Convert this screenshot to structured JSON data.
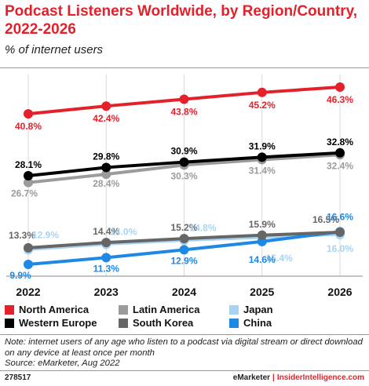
{
  "title": "Podcast Listeners Worldwide, by Region/Country, 2022-2026",
  "subtitle": "% of internet users",
  "note": "Note: internet users of any age who listen to a podcast via digital stream or direct download on any device at least once per month",
  "source": "Source: eMarketer, Aug 2022",
  "footer": {
    "id": "278517",
    "brand": "eMarketer",
    "separator": "|",
    "site": "InsiderIntelligence.com"
  },
  "chart_data": {
    "type": "line",
    "x": [
      "2022",
      "2023",
      "2024",
      "2025",
      "2026"
    ],
    "ylim": [
      0,
      50
    ],
    "grid": true,
    "legend_position": "bottom",
    "series": [
      {
        "name": "North America",
        "color": "#e4202a",
        "values": [
          40.8,
          42.4,
          43.8,
          45.2,
          46.3
        ],
        "labels": [
          "40.8%",
          "42.4%",
          "43.8%",
          "45.2%",
          "46.3%"
        ]
      },
      {
        "name": "Western Europe",
        "color": "#000000",
        "values": [
          28.1,
          29.8,
          30.9,
          31.9,
          32.8
        ],
        "labels": [
          "28.1%",
          "29.8%",
          "30.9%",
          "31.9%",
          "32.8%"
        ]
      },
      {
        "name": "Latin America",
        "color": "#9b9b9b",
        "values": [
          26.7,
          28.4,
          30.3,
          31.4,
          32.4
        ],
        "labels": [
          "26.7%",
          "28.4%",
          "30.3%",
          "31.4%",
          "32.4%"
        ]
      },
      {
        "name": "South Korea",
        "color": "#666666",
        "values": [
          13.3,
          14.4,
          15.2,
          15.9,
          16.5
        ],
        "labels": [
          "13.3%",
          "14.4%",
          "15.2%",
          "15.9%",
          "16.5%"
        ]
      },
      {
        "name": "Japan",
        "color": "#a8d4f2",
        "values": [
          12.9,
          14.0,
          14.8,
          15.4,
          16.0
        ],
        "labels": [
          "12.9%",
          "14.0%",
          "14.8%",
          "15.4%",
          "16.0%"
        ]
      },
      {
        "name": "China",
        "color": "#1e88e5",
        "values": [
          9.9,
          11.3,
          12.9,
          14.6,
          16.6
        ],
        "labels": [
          "9.9%",
          "11.3%",
          "12.9%",
          "14.6%",
          "16.6%"
        ]
      }
    ],
    "legend": [
      "North America",
      "Latin America",
      "Japan",
      "Western Europe",
      "South Korea",
      "China"
    ]
  }
}
